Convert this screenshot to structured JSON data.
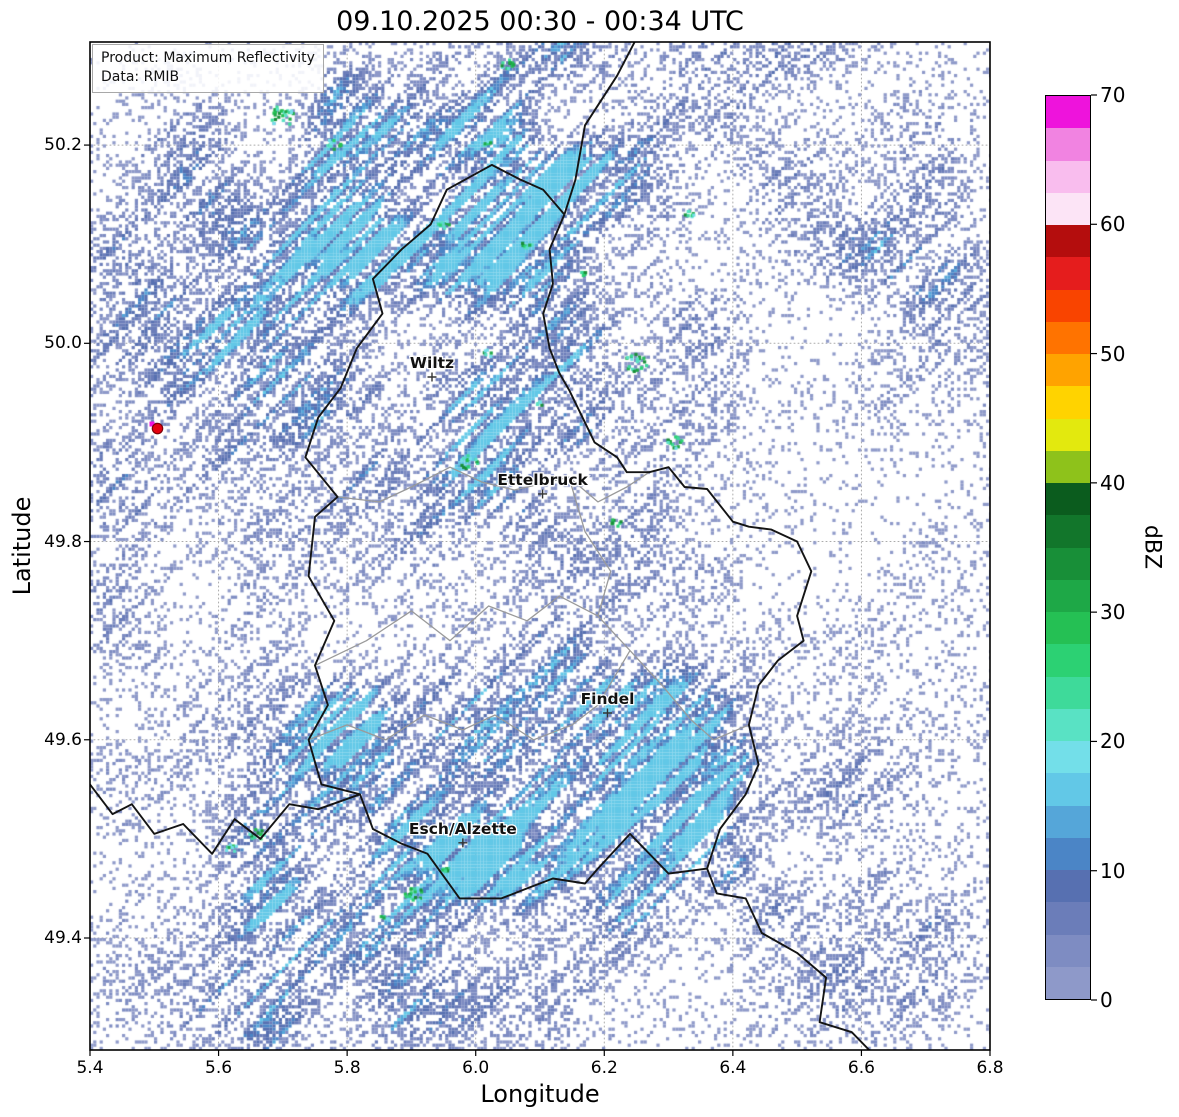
{
  "title": "09.10.2025 00:30 - 00:34 UTC",
  "product_box": {
    "line1": "Product: Maximum Reflectivity",
    "line2": "Data: RMIB"
  },
  "axes": {
    "xlabel": "Longitude",
    "ylabel": "Latitude",
    "x_ticks": [
      "5.4",
      "5.6",
      "5.8",
      "6.0",
      "6.2",
      "6.4",
      "6.6",
      "6.8"
    ],
    "y_ticks": [
      "49.4",
      "49.6",
      "49.8",
      "50.0",
      "50.2"
    ],
    "x_range": [
      5.4,
      6.8
    ],
    "y_range": [
      49.287,
      50.304
    ],
    "grid_color": "#ababab"
  },
  "colorbar": {
    "label": "dBZ",
    "ticks": [
      "0",
      "10",
      "20",
      "30",
      "40",
      "50",
      "60",
      "70"
    ],
    "min": 0,
    "max": 70,
    "colors": [
      "#8e99c9",
      "#7e8cc2",
      "#6b7db9",
      "#5770b1",
      "#4b85c6",
      "#55a6d9",
      "#62c8e7",
      "#73dfe9",
      "#59e2c4",
      "#3eda9a",
      "#2cd173",
      "#25c054",
      "#1ea847",
      "#188f38",
      "#12762b",
      "#0b5c1e",
      "#8ec21b",
      "#e3e90e",
      "#ffd300",
      "#ffa300",
      "#ff7300",
      "#f94400",
      "#e51d1d",
      "#b40d0d",
      "#fce4f6",
      "#f9bdee",
      "#f183e1",
      "#ee13dc"
    ]
  },
  "cities": [
    {
      "name": "Wiltz",
      "lon": 5.932,
      "lat": 49.966
    },
    {
      "name": "Ettelbruck",
      "lon": 6.104,
      "lat": 49.848
    },
    {
      "name": "Findel",
      "lon": 6.205,
      "lat": 49.627
    },
    {
      "name": "Esch/Alzette",
      "lon": 5.98,
      "lat": 49.496
    }
  ],
  "radar_site": {
    "lon": 5.505,
    "lat": 49.914,
    "fill": "#e4000f",
    "edge": "#7a0008",
    "clutter_color": "#ee13dc"
  },
  "borders": {
    "country_color": "#141414",
    "district_color": "#9a9a9a",
    "country": [
      [
        [
          6.26,
          50.32
        ],
        [
          6.22,
          50.27
        ],
        [
          6.17,
          50.22
        ],
        [
          6.155,
          50.165
        ],
        [
          6.138,
          50.13
        ]
      ],
      [
        [
          6.138,
          50.13
        ],
        [
          6.115,
          50.095
        ],
        [
          6.12,
          50.06
        ],
        [
          6.105,
          50.03
        ],
        [
          6.115,
          49.995
        ],
        [
          6.13,
          49.97
        ],
        [
          6.146,
          49.952
        ],
        [
          6.17,
          49.92
        ],
        [
          6.185,
          49.9
        ],
        [
          6.22,
          49.885
        ],
        [
          6.235,
          49.87
        ],
        [
          6.27,
          49.87
        ],
        [
          6.3,
          49.875
        ],
        [
          6.325,
          49.855
        ],
        [
          6.36,
          49.853
        ],
        [
          6.4,
          49.82
        ],
        [
          6.425,
          49.815
        ],
        [
          6.46,
          49.812
        ],
        [
          6.5,
          49.8
        ],
        [
          6.522,
          49.77
        ],
        [
          6.5,
          49.725
        ],
        [
          6.51,
          49.7
        ],
        [
          6.47,
          49.68
        ],
        [
          6.44,
          49.655
        ],
        [
          6.425,
          49.615
        ],
        [
          6.44,
          49.575
        ],
        [
          6.42,
          49.545
        ],
        [
          6.38,
          49.51
        ],
        [
          6.36,
          49.47
        ],
        [
          6.3,
          49.465
        ],
        [
          6.24,
          49.505
        ],
        [
          6.19,
          49.47
        ],
        [
          6.17,
          49.455
        ],
        [
          6.12,
          49.46
        ],
        [
          6.08,
          49.45
        ],
        [
          6.04,
          49.44
        ],
        [
          5.975,
          49.44
        ],
        [
          5.925,
          49.485
        ],
        [
          5.885,
          49.495
        ],
        [
          5.84,
          49.51
        ],
        [
          5.82,
          49.545
        ],
        [
          5.76,
          49.555
        ],
        [
          5.74,
          49.6
        ],
        [
          5.77,
          49.635
        ],
        [
          5.75,
          49.675
        ],
        [
          5.78,
          49.72
        ],
        [
          5.74,
          49.765
        ],
        [
          5.75,
          49.825
        ],
        [
          5.785,
          49.845
        ],
        [
          5.735,
          49.885
        ],
        [
          5.755,
          49.925
        ],
        [
          5.79,
          49.955
        ],
        [
          5.815,
          49.995
        ],
        [
          5.855,
          50.03
        ],
        [
          5.84,
          50.065
        ],
        [
          5.885,
          50.095
        ],
        [
          5.93,
          50.12
        ],
        [
          5.955,
          50.155
        ],
        [
          6.025,
          50.18
        ],
        [
          6.07,
          50.165
        ],
        [
          6.105,
          50.155
        ],
        [
          6.138,
          50.13
        ]
      ],
      [
        [
          5.4,
          49.555
        ],
        [
          5.435,
          49.525
        ],
        [
          5.465,
          49.535
        ],
        [
          5.5,
          49.505
        ],
        [
          5.545,
          49.515
        ],
        [
          5.59,
          49.485
        ],
        [
          5.625,
          49.52
        ],
        [
          5.665,
          49.5
        ],
        [
          5.71,
          49.535
        ],
        [
          5.755,
          49.53
        ],
        [
          5.82,
          49.545
        ]
      ],
      [
        [
          6.36,
          49.47
        ],
        [
          6.375,
          49.445
        ],
        [
          6.42,
          49.44
        ],
        [
          6.445,
          49.405
        ],
        [
          6.5,
          49.385
        ],
        [
          6.545,
          49.36
        ],
        [
          6.535,
          49.315
        ],
        [
          6.585,
          49.305
        ],
        [
          6.615,
          49.285
        ]
      ]
    ],
    "district": [
      [
        [
          5.785,
          49.845
        ],
        [
          5.85,
          49.84
        ],
        [
          5.9,
          49.855
        ],
        [
          5.96,
          49.875
        ],
        [
          6.01,
          49.86
        ],
        [
          6.06,
          49.852
        ],
        [
          6.1,
          49.858
        ],
        [
          6.145,
          49.865
        ],
        [
          6.19,
          49.84
        ],
        [
          6.235,
          49.855
        ],
        [
          6.27,
          49.87
        ]
      ],
      [
        [
          6.145,
          49.865
        ],
        [
          6.17,
          49.81
        ],
        [
          6.21,
          49.77
        ],
        [
          6.19,
          49.725
        ],
        [
          6.24,
          49.69
        ],
        [
          6.29,
          49.655
        ],
        [
          6.335,
          49.62
        ],
        [
          6.37,
          49.6
        ],
        [
          6.425,
          49.615
        ]
      ],
      [
        [
          5.74,
          49.6
        ],
        [
          5.8,
          49.615
        ],
        [
          5.86,
          49.6
        ],
        [
          5.92,
          49.625
        ],
        [
          5.98,
          49.61
        ],
        [
          6.03,
          49.625
        ],
        [
          6.09,
          49.6
        ],
        [
          6.15,
          49.615
        ],
        [
          6.19,
          49.635
        ],
        [
          6.24,
          49.69
        ]
      ],
      [
        [
          5.75,
          49.675
        ],
        [
          5.83,
          49.7
        ],
        [
          5.9,
          49.73
        ],
        [
          5.96,
          49.7
        ],
        [
          6.02,
          49.735
        ],
        [
          6.08,
          49.72
        ],
        [
          6.13,
          49.745
        ],
        [
          6.19,
          49.725
        ]
      ]
    ]
  },
  "radar_field": {
    "seed": 20251009,
    "cell": 3.2,
    "base_density": 0.045,
    "palette_low": [
      "#8e99c9",
      "#7e8cc2",
      "#6b7db9",
      "#5770b1",
      "#4b85c6",
      "#55a6d9",
      "#62c8e7"
    ],
    "blobs": [
      {
        "lon": 6.02,
        "lat": 49.5,
        "slon": 0.38,
        "slat": 0.1,
        "w": 0.85
      },
      {
        "lon": 5.9,
        "lat": 49.57,
        "slon": 0.3,
        "slat": 0.1,
        "w": 0.55
      },
      {
        "lon": 6.12,
        "lat": 49.62,
        "slon": 0.22,
        "slat": 0.09,
        "w": 0.65
      },
      {
        "lon": 5.75,
        "lat": 49.45,
        "slon": 0.25,
        "slat": 0.12,
        "w": 0.45
      },
      {
        "lon": 5.51,
        "lat": 49.91,
        "slon": 0.3,
        "slat": 0.3,
        "w": 0.4
      },
      {
        "lon": 5.6,
        "lat": 50.05,
        "slon": 0.3,
        "slat": 0.2,
        "w": 0.3
      },
      {
        "lon": 5.85,
        "lat": 50.17,
        "slon": 0.28,
        "slat": 0.1,
        "w": 0.6
      },
      {
        "lon": 6.1,
        "lat": 50.16,
        "slon": 0.25,
        "slat": 0.12,
        "w": 0.5
      },
      {
        "lon": 5.95,
        "lat": 49.97,
        "slon": 0.18,
        "slat": 0.22,
        "w": 0.4
      },
      {
        "lon": 6.05,
        "lat": 49.9,
        "slon": 0.15,
        "slat": 0.12,
        "w": 0.35
      },
      {
        "lon": 6.28,
        "lat": 49.95,
        "slon": 0.13,
        "slat": 0.13,
        "w": 0.45
      },
      {
        "lon": 6.45,
        "lat": 50.17,
        "slon": 0.22,
        "slat": 0.13,
        "w": 0.4
      },
      {
        "lon": 6.3,
        "lat": 50.3,
        "slon": 0.3,
        "slat": 0.1,
        "w": 0.35
      },
      {
        "lon": 6.6,
        "lat": 49.45,
        "slon": 0.28,
        "slat": 0.18,
        "w": 0.4
      },
      {
        "lon": 6.3,
        "lat": 49.68,
        "slon": 0.18,
        "slat": 0.12,
        "w": 0.35
      },
      {
        "lon": 6.75,
        "lat": 49.95,
        "slon": 0.15,
        "slat": 0.25,
        "w": 0.25
      },
      {
        "lon": 6.65,
        "lat": 50.05,
        "slon": 0.2,
        "slat": 0.15,
        "w": 0.25
      },
      {
        "lon": 5.55,
        "lat": 49.31,
        "slon": 0.2,
        "slat": 0.08,
        "w": 0.3
      },
      {
        "lon": 5.95,
        "lat": 49.32,
        "slon": 0.3,
        "slat": 0.08,
        "w": 0.3
      }
    ],
    "high_spots": [
      {
        "lon": 5.7,
        "lat": 50.23,
        "r": 14,
        "n": 26
      },
      {
        "lon": 5.78,
        "lat": 50.2,
        "r": 8,
        "n": 10
      },
      {
        "lon": 6.02,
        "lat": 50.2,
        "r": 5,
        "n": 6
      },
      {
        "lon": 6.05,
        "lat": 50.28,
        "r": 8,
        "n": 12
      },
      {
        "lon": 5.95,
        "lat": 50.12,
        "r": 6,
        "n": 8
      },
      {
        "lon": 6.08,
        "lat": 50.1,
        "r": 5,
        "n": 8
      },
      {
        "lon": 6.02,
        "lat": 49.99,
        "r": 5,
        "n": 6
      },
      {
        "lon": 6.1,
        "lat": 49.94,
        "r": 4,
        "n": 5
      },
      {
        "lon": 6.25,
        "lat": 49.98,
        "r": 12,
        "n": 22
      },
      {
        "lon": 6.31,
        "lat": 49.9,
        "r": 9,
        "n": 16
      },
      {
        "lon": 6.33,
        "lat": 50.13,
        "r": 6,
        "n": 8
      },
      {
        "lon": 6.17,
        "lat": 50.07,
        "r": 4,
        "n": 5
      },
      {
        "lon": 5.99,
        "lat": 49.88,
        "r": 9,
        "n": 14
      },
      {
        "lon": 6.22,
        "lat": 49.82,
        "r": 6,
        "n": 8
      },
      {
        "lon": 5.66,
        "lat": 49.505,
        "r": 8,
        "n": 12
      },
      {
        "lon": 5.62,
        "lat": 49.49,
        "r": 6,
        "n": 8
      },
      {
        "lon": 5.905,
        "lat": 49.445,
        "r": 10,
        "n": 18
      },
      {
        "lon": 5.95,
        "lat": 49.47,
        "r": 6,
        "n": 8
      },
      {
        "lon": 5.86,
        "lat": 49.42,
        "r": 5,
        "n": 6
      }
    ],
    "spot_colors": [
      "#73dfe9",
      "#59e2c4",
      "#3eda9a",
      "#2cd173",
      "#25c054",
      "#1ea847",
      "#188f38"
    ]
  }
}
